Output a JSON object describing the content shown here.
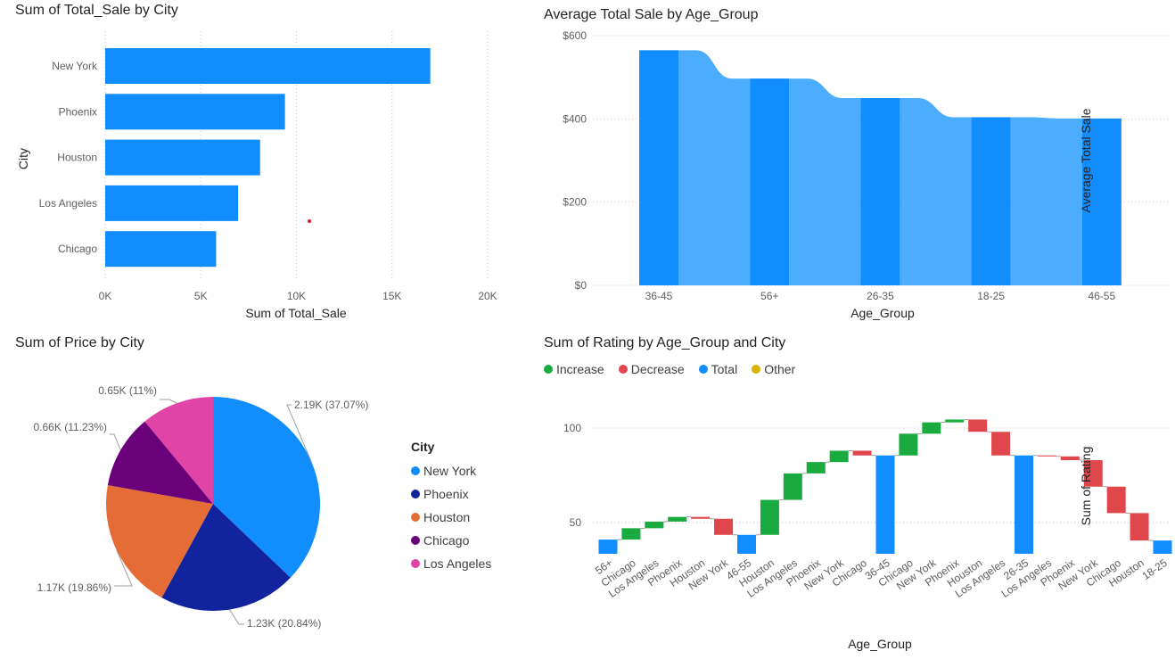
{
  "colors": {
    "primary": "#118DFF",
    "waterfall_band": "#4CADFF",
    "increase": "#1AAB40",
    "decrease": "#E0474C",
    "total": "#118DFF",
    "other": "#D9B300",
    "pie": [
      "#118DFF",
      "#12239E",
      "#E66C37",
      "#6B007B",
      "#E044A7"
    ],
    "grid": "#C8C6C4",
    "outlier_dot": "#E81123"
  },
  "bar_panel": {
    "title": "Sum of Total_Sale by City",
    "chart_data": {
      "type": "bar",
      "orientation": "horizontal",
      "categories": [
        "New York",
        "Phoenix",
        "Houston",
        "Los Angeles",
        "Chicago"
      ],
      "values": [
        17000,
        9400,
        8100,
        6950,
        5800
      ],
      "xlabel": "Sum of Total_Sale",
      "ylabel": "City",
      "xlim": [
        0,
        20000
      ],
      "x_ticks": [
        "0K",
        "5K",
        "10K",
        "15K",
        "20K"
      ],
      "grid": true
    }
  },
  "area_panel": {
    "title": "Average Total Sale by Age_Group",
    "chart_data": {
      "type": "bar",
      "categories": [
        "36-45",
        "56+",
        "26-35",
        "18-25",
        "46-55"
      ],
      "values": [
        565,
        497,
        450,
        404,
        401
      ],
      "xlabel": "Age_Group",
      "ylabel": "Average Total Sale",
      "ylim": [
        0,
        600
      ],
      "y_ticks": [
        "$0",
        "$200",
        "$400",
        "$600"
      ],
      "grid": true
    }
  },
  "pie_panel": {
    "title": "Sum of Price by City",
    "legend_title": "City",
    "chart_data": {
      "type": "pie",
      "categories": [
        "New York",
        "Phoenix",
        "Houston",
        "Chicago",
        "Los Angeles"
      ],
      "values": [
        2.19,
        1.23,
        1.17,
        0.66,
        0.65
      ],
      "percents": [
        37.07,
        20.84,
        19.86,
        11.23,
        11
      ],
      "labels": [
        "2.19K (37.07%)",
        "1.23K (20.84%)",
        "1.17K (19.86%)",
        "0.66K (11.23%)",
        "0.65K (11%)"
      ],
      "legend_position": "right"
    }
  },
  "waterfall_panel": {
    "title": "Sum of Rating by Age_Group and City",
    "legend": [
      "Increase",
      "Decrease",
      "Total",
      "Other"
    ],
    "chart_data": {
      "type": "bar",
      "subtype": "waterfall",
      "xlabel": "Age_Group",
      "ylabel": "Sum of Rating",
      "y_ticks": [
        50,
        100
      ],
      "grid": true,
      "steps": [
        {
          "label": "56+",
          "kind": "total",
          "from": 0,
          "to": 41
        },
        {
          "label": "Chicago",
          "kind": "increase",
          "from": 41,
          "to": 47
        },
        {
          "label": "Los Angeles",
          "kind": "increase",
          "from": 47,
          "to": 50.5
        },
        {
          "label": "Phoenix",
          "kind": "increase",
          "from": 50.5,
          "to": 53
        },
        {
          "label": "Houston",
          "kind": "decrease",
          "from": 53,
          "to": 52
        },
        {
          "label": "New York",
          "kind": "decrease",
          "from": 52,
          "to": 43.5
        },
        {
          "label": "46-55",
          "kind": "total",
          "from": 0,
          "to": 43.5
        },
        {
          "label": "Houston",
          "kind": "increase",
          "from": 43.5,
          "to": 62
        },
        {
          "label": "Los Angeles",
          "kind": "increase",
          "from": 62,
          "to": 76
        },
        {
          "label": "Phoenix",
          "kind": "increase",
          "from": 76,
          "to": 82
        },
        {
          "label": "New York",
          "kind": "increase",
          "from": 82,
          "to": 88
        },
        {
          "label": "Chicago",
          "kind": "decrease",
          "from": 88,
          "to": 85.5
        },
        {
          "label": "36-45",
          "kind": "total",
          "from": 0,
          "to": 85.5
        },
        {
          "label": "Chicago",
          "kind": "increase",
          "from": 85.5,
          "to": 97
        },
        {
          "label": "New York",
          "kind": "increase",
          "from": 97,
          "to": 103
        },
        {
          "label": "Phoenix",
          "kind": "increase",
          "from": 103,
          "to": 104.5
        },
        {
          "label": "Houston",
          "kind": "decrease",
          "from": 104.5,
          "to": 98
        },
        {
          "label": "Los Angeles",
          "kind": "decrease",
          "from": 98,
          "to": 85.5
        },
        {
          "label": "26-35",
          "kind": "total",
          "from": 0,
          "to": 85.5
        },
        {
          "label": "Los Angeles",
          "kind": "decrease",
          "from": 85.5,
          "to": 85
        },
        {
          "label": "Phoenix",
          "kind": "decrease",
          "from": 85,
          "to": 83
        },
        {
          "label": "New York",
          "kind": "decrease",
          "from": 83,
          "to": 69
        },
        {
          "label": "Chicago",
          "kind": "decrease",
          "from": 69,
          "to": 55
        },
        {
          "label": "Houston",
          "kind": "decrease",
          "from": 55,
          "to": 40.5
        },
        {
          "label": "18-25",
          "kind": "total",
          "from": 0,
          "to": 40.5
        }
      ]
    }
  }
}
